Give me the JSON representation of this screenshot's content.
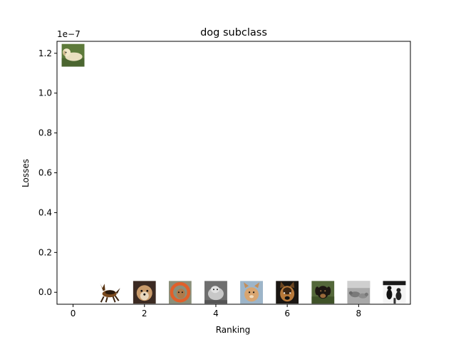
{
  "chart_data": {
    "type": "scatter",
    "title": "dog subclass",
    "xlabel": "Ranking",
    "ylabel": "Losses",
    "offset_text": "1e−7",
    "xlim": [
      -0.45,
      9.45
    ],
    "ylim": [
      -0.06,
      1.26
    ],
    "xticks": [
      0,
      2,
      4,
      6,
      8
    ],
    "xtick_labels": [
      "0",
      "2",
      "4",
      "6",
      "8"
    ],
    "yticks": [
      0.0,
      0.2,
      0.4,
      0.6,
      0.8,
      1.0,
      1.2
    ],
    "ytick_labels": [
      "0.0",
      "0.2",
      "0.4",
      "0.6",
      "0.8",
      "1.0",
      "1.2"
    ],
    "grid": false,
    "marker": "image-thumbnail",
    "points": [
      {
        "x": 0,
        "y": 1.19,
        "thumb": "golden-retriever-lying-on-grass"
      },
      {
        "x": 1,
        "y": 0.0,
        "thumb": "german-shepherd-running"
      },
      {
        "x": 2,
        "y": 0.0,
        "thumb": "fluffy-dog-closeup"
      },
      {
        "x": 3,
        "y": 0.0,
        "thumb": "dog-with-orange-ring-toy"
      },
      {
        "x": 4,
        "y": 0.0,
        "thumb": "grey-dog-grayscale"
      },
      {
        "x": 5,
        "y": 0.0,
        "thumb": "tan-dog-on-blue-background"
      },
      {
        "x": 6,
        "y": 0.0,
        "thumb": "german-shepherd-face"
      },
      {
        "x": 7,
        "y": 0.0,
        "thumb": "black-tan-dog-in-grass"
      },
      {
        "x": 8,
        "y": 0.0,
        "thumb": "grey-dogs-outdoor"
      },
      {
        "x": 9,
        "y": 0.0,
        "thumb": "black-white-dog-silhouettes"
      }
    ]
  }
}
